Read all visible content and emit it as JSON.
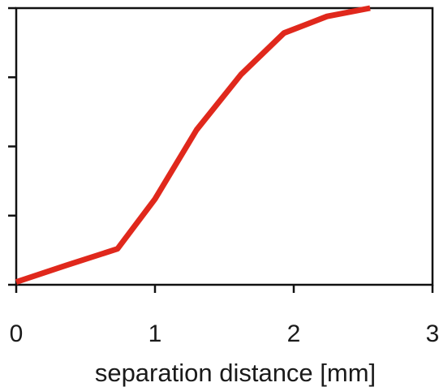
{
  "chart_data": {
    "type": "line",
    "title": "",
    "xlabel": "separation distance [mm]",
    "ylabel": "",
    "xlim": [
      0,
      3
    ],
    "ylim": [
      0,
      1
    ],
    "x_ticks": [
      0,
      1,
      2,
      3
    ],
    "x_tick_labels": [
      "0",
      "1",
      "2",
      "3"
    ],
    "y_tick_count": 5,
    "grid": false,
    "legend": "none",
    "series": [
      {
        "color": "#e0281c",
        "x": [
          0,
          0.36,
          0.73,
          1.0,
          1.3,
          1.62,
          1.93,
          2.24,
          2.55
        ],
        "y": [
          0.01,
          0.07,
          0.13,
          0.31,
          0.56,
          0.76,
          0.91,
          0.97,
          1.0
        ]
      }
    ]
  }
}
